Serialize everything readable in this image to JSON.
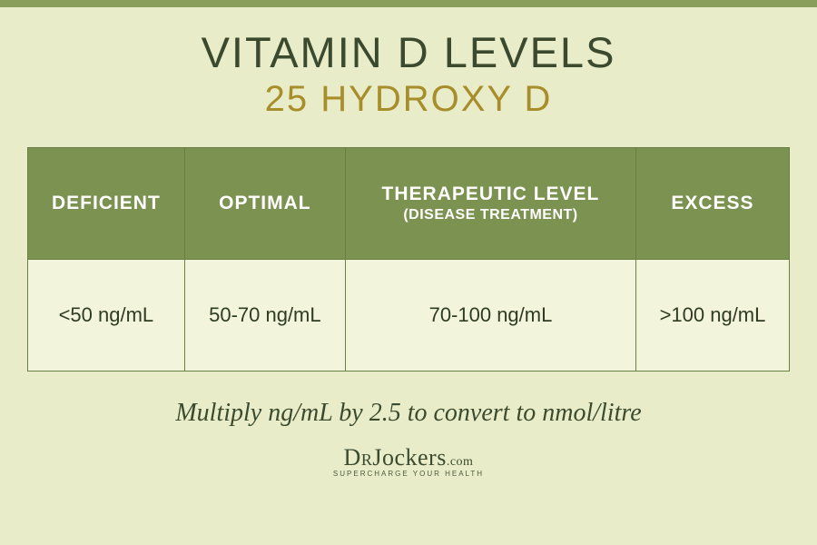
{
  "colors": {
    "background": "#e9ecc9",
    "top_border": "#8a9e5c",
    "title_text": "#3b4a2e",
    "subtitle_text": "#a88e2a",
    "header_row_bg": "#7c9250",
    "header_text": "#ffffff",
    "cell_bg": "#f2f4dc",
    "cell_text": "#2f3b22",
    "table_border": "#6a7f44",
    "footnote_text": "#3b4a2e"
  },
  "header": {
    "title": "VITAMIN D LEVELS",
    "subtitle": "25 HYDROXY D",
    "title_fontsize": 47,
    "subtitle_fontsize": 40
  },
  "table": {
    "type": "table",
    "columns": [
      {
        "label": "DEFICIENT",
        "sublabel": null
      },
      {
        "label": "OPTIMAL",
        "sublabel": null
      },
      {
        "label": "THERAPEUTIC LEVEL",
        "sublabel": "(DISEASE TREATMENT)"
      },
      {
        "label": "EXCESS",
        "sublabel": null
      }
    ],
    "rows": [
      [
        "<50 ng/mL",
        "50-70 ng/mL",
        "70-100 ng/mL",
        ">100 ng/mL"
      ]
    ],
    "header_fontsize": 21,
    "header_sub_fontsize": 16,
    "cell_fontsize": 22,
    "col_widths_pct": [
      25,
      25,
      25,
      25
    ]
  },
  "footnote": "Multiply ng/mL by 2.5 to convert to nmol/litre",
  "footnote_fontsize": 28,
  "logo": {
    "brand_prefix": "Dr",
    "brand_main": "Jockers",
    "brand_suffix": ".com",
    "tagline": "SUPERCHARGE YOUR HEALTH"
  }
}
